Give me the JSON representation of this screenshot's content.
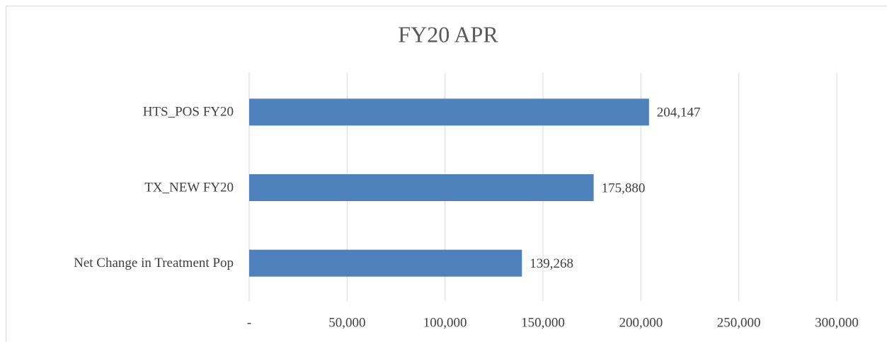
{
  "chart_data": {
    "type": "hbar",
    "title": "FY20 APR",
    "categories": [
      "HTS_POS FY20",
      "TX_NEW FY20",
      "Net Change in Treatment Pop"
    ],
    "values": [
      204147,
      175880,
      139268
    ],
    "value_labels": [
      "204,147",
      "175,880",
      "139,268"
    ],
    "color": "#4f81bd",
    "xlim": [
      0,
      300000
    ],
    "xticks": [
      {
        "value": 0,
        "label": "-"
      },
      {
        "value": 50000,
        "label": "50,000"
      },
      {
        "value": 100000,
        "label": "100,000"
      },
      {
        "value": 150000,
        "label": "150,000"
      },
      {
        "value": 200000,
        "label": "200,000"
      },
      {
        "value": 250000,
        "label": "250,000"
      },
      {
        "value": 300000,
        "label": "300,000"
      }
    ],
    "grid": true
  }
}
